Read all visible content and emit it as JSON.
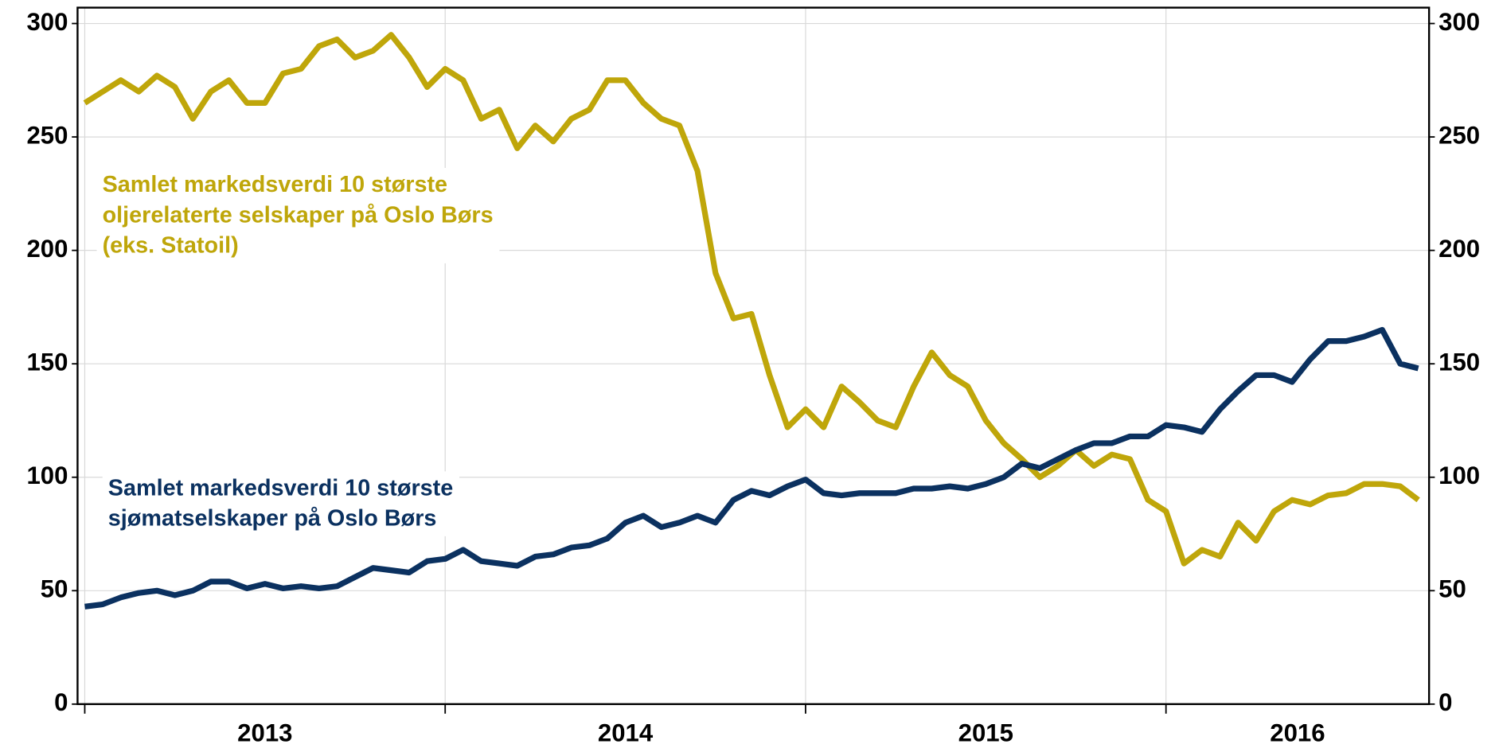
{
  "chart_data": {
    "type": "line",
    "x": [
      2013.0,
      2013.05,
      2013.1,
      2013.15,
      2013.2,
      2013.25,
      2013.3,
      2013.35,
      2013.4,
      2013.45,
      2013.5,
      2013.55,
      2013.6,
      2013.65,
      2013.7,
      2013.75,
      2013.8,
      2013.85,
      2013.9,
      2013.95,
      2014.0,
      2014.05,
      2014.1,
      2014.15,
      2014.2,
      2014.25,
      2014.3,
      2014.35,
      2014.4,
      2014.45,
      2014.5,
      2014.55,
      2014.6,
      2014.65,
      2014.7,
      2014.75,
      2014.8,
      2014.85,
      2014.9,
      2014.95,
      2015.0,
      2015.05,
      2015.1,
      2015.15,
      2015.2,
      2015.25,
      2015.3,
      2015.35,
      2015.4,
      2015.45,
      2015.5,
      2015.55,
      2015.6,
      2015.65,
      2015.7,
      2015.75,
      2015.8,
      2015.85,
      2015.9,
      2015.95,
      2016.0,
      2016.05,
      2016.1,
      2016.15,
      2016.2,
      2016.25,
      2016.3,
      2016.35,
      2016.4,
      2016.45,
      2016.5,
      2016.55,
      2016.6,
      2016.65,
      2016.7
    ],
    "series": [
      {
        "name": "Samlet markedsverdi 10 største\noljerelaterte selskaper på Oslo Børs\n(eks. Statoil)",
        "color": "#bfa60a",
        "values": [
          265,
          270,
          275,
          270,
          277,
          272,
          258,
          270,
          275,
          265,
          265,
          278,
          280,
          290,
          293,
          285,
          288,
          295,
          285,
          272,
          280,
          275,
          258,
          262,
          245,
          255,
          248,
          258,
          262,
          275,
          275,
          265,
          258,
          255,
          235,
          190,
          170,
          172,
          145,
          122,
          130,
          122,
          140,
          133,
          125,
          122,
          140,
          155,
          145,
          140,
          125,
          115,
          108,
          100,
          105,
          112,
          105,
          110,
          108,
          90,
          85,
          62,
          68,
          65,
          80,
          72,
          85,
          90,
          88,
          92,
          93,
          97,
          97,
          96,
          90
        ]
      },
      {
        "name": "Samlet markedsverdi 10 største\nsjømatselskaper på Oslo Børs",
        "color": "#0b3160",
        "values": [
          43,
          44,
          47,
          49,
          50,
          48,
          50,
          54,
          54,
          51,
          53,
          51,
          52,
          51,
          52,
          56,
          60,
          59,
          58,
          63,
          64,
          68,
          63,
          62,
          61,
          65,
          66,
          69,
          70,
          73,
          80,
          83,
          78,
          80,
          83,
          80,
          90,
          94,
          92,
          96,
          99,
          93,
          92,
          93,
          93,
          93,
          95,
          95,
          96,
          95,
          97,
          100,
          106,
          104,
          108,
          112,
          115,
          115,
          118,
          118,
          123,
          122,
          120,
          130,
          138,
          145,
          145,
          142,
          152,
          160,
          160,
          162,
          165,
          150,
          148
        ]
      }
    ],
    "xlim": [
      2012.98,
      2016.73
    ],
    "xticks": [
      {
        "value": 2013,
        "label": "2013"
      },
      {
        "value": 2014,
        "label": "2014"
      },
      {
        "value": 2015,
        "label": "2015"
      },
      {
        "value": 2016,
        "label": "2016"
      }
    ],
    "ylim": [
      0,
      307
    ],
    "yticks": [
      0,
      50,
      100,
      150,
      200,
      250,
      300
    ],
    "grid": true
  }
}
